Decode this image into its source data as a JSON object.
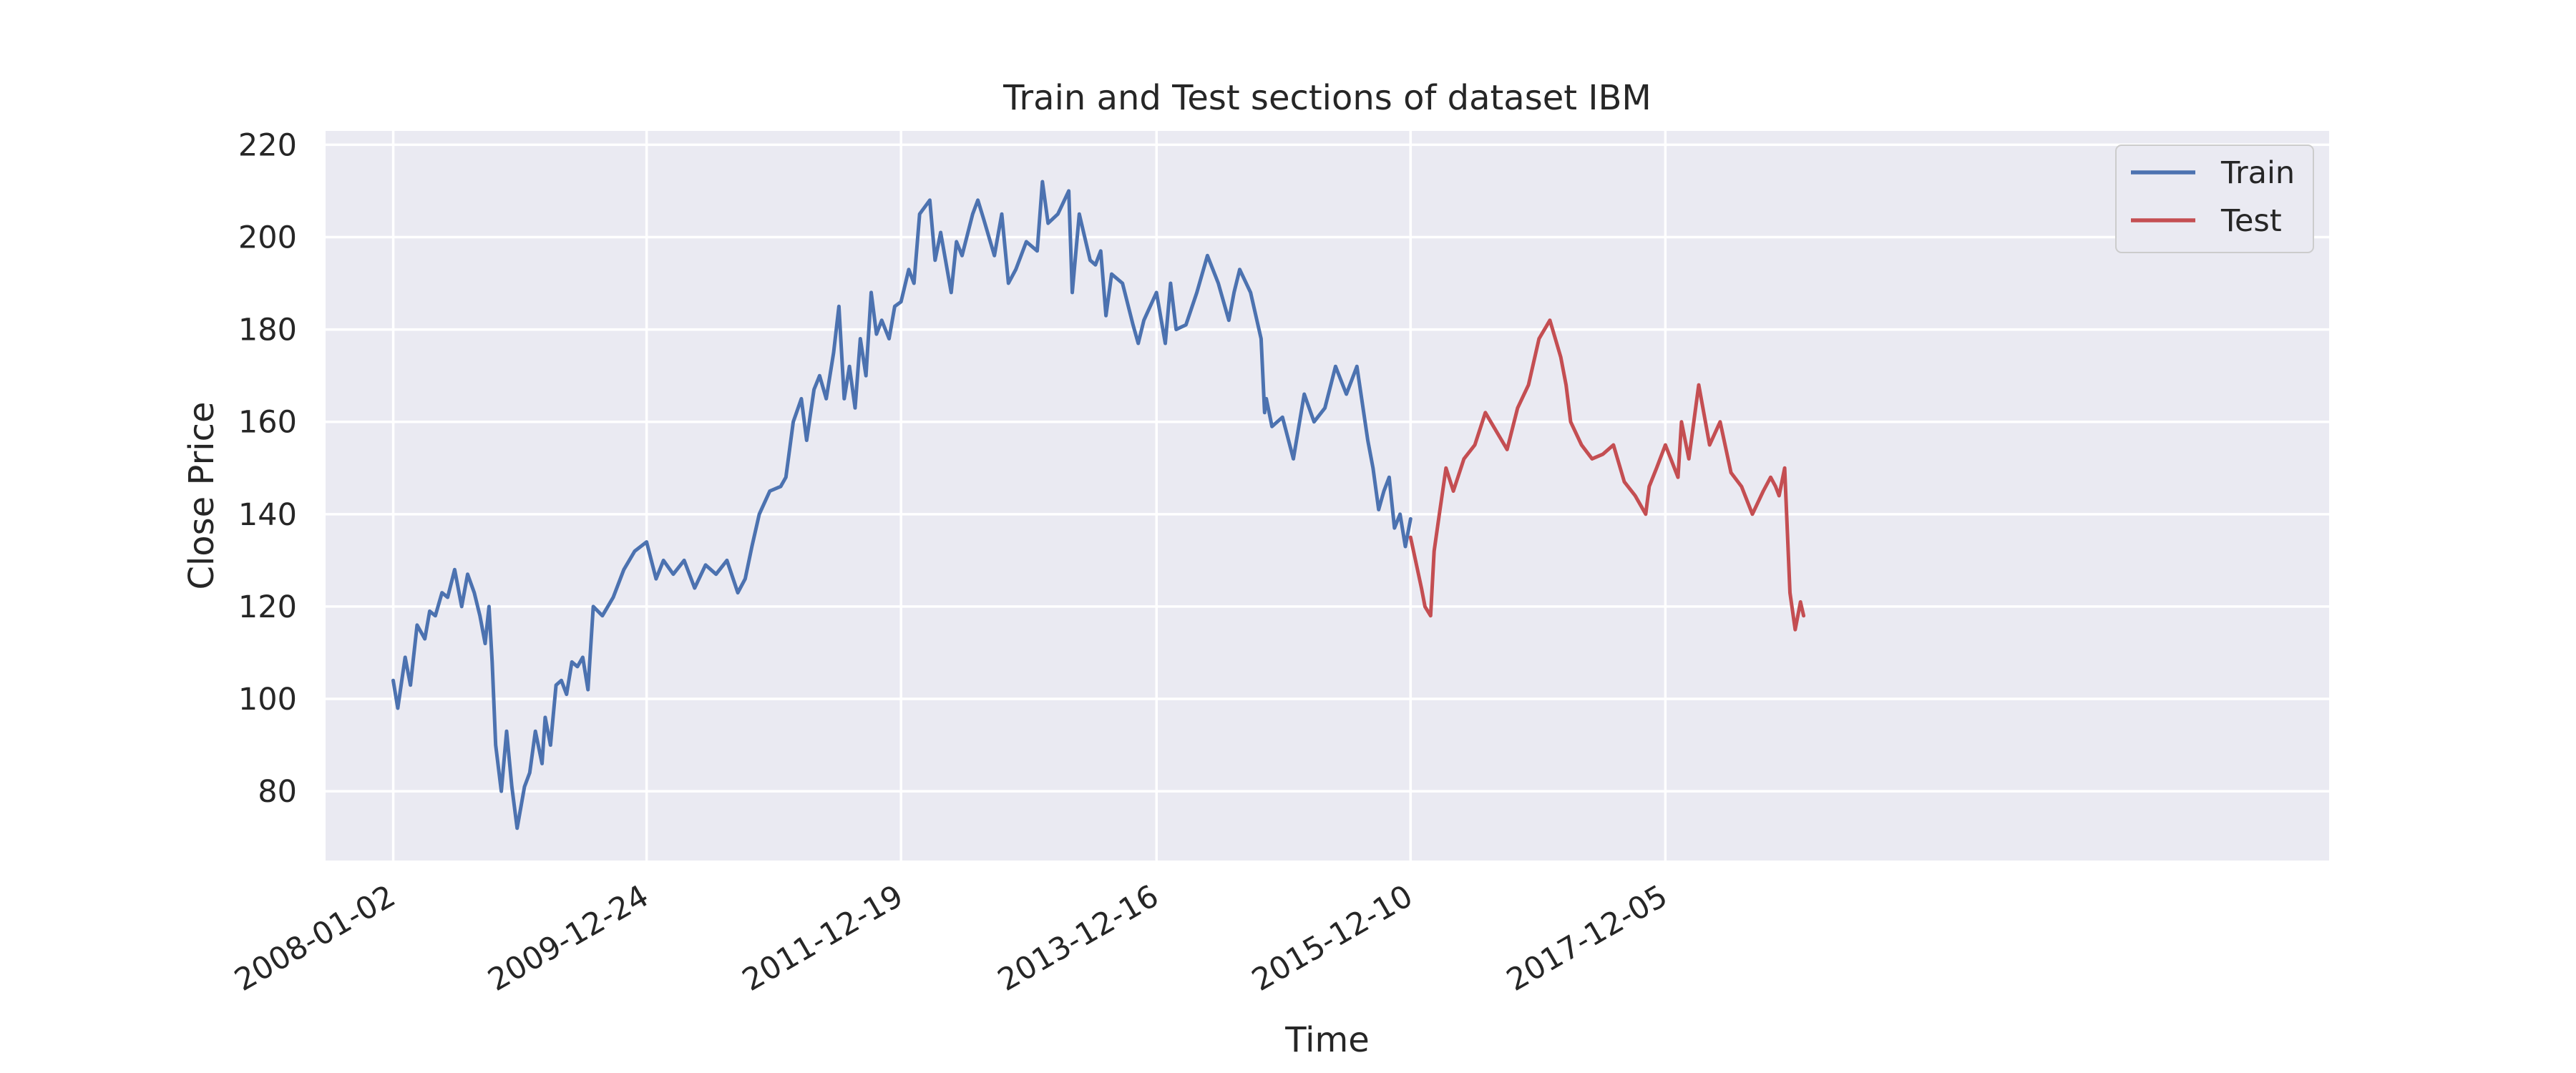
{
  "chart_data": {
    "type": "line",
    "title": "Train and Test sections of dataset IBM",
    "xlabel": "Time",
    "ylabel": "Close Price",
    "x_ticks": [
      "2008-01-02",
      "2009-12-24",
      "2011-12-19",
      "2013-12-16",
      "2015-12-10",
      "2017-12-05"
    ],
    "x_range_days": [
      -133,
      3806
    ],
    "xlim_note_unit": "trading-day index from 2008-01-02",
    "y_ticks": [
      80,
      100,
      120,
      140,
      160,
      180,
      200,
      220
    ],
    "ylim": [
      65,
      223
    ],
    "grid": true,
    "legend": {
      "position": "top-right"
    },
    "series": [
      {
        "name": "Train",
        "color": "#4c72b0",
        "x": [
          "2008-01-02",
          "2008-01-15",
          "2008-02-05",
          "2008-02-20",
          "2008-03-10",
          "2008-04-01",
          "2008-04-15",
          "2008-05-01",
          "2008-05-20",
          "2008-06-05",
          "2008-06-25",
          "2008-07-15",
          "2008-08-01",
          "2008-08-20",
          "2008-09-05",
          "2008-09-20",
          "2008-10-01",
          "2008-10-10",
          "2008-10-20",
          "2008-11-05",
          "2008-11-20",
          "2008-12-05",
          "2008-12-20",
          "2009-01-10",
          "2009-01-25",
          "2009-02-10",
          "2009-03-01",
          "2009-03-10",
          "2009-03-25",
          "2009-04-10",
          "2009-04-25",
          "2009-05-10",
          "2009-05-25",
          "2009-06-10",
          "2009-06-25",
          "2009-07-10",
          "2009-07-25",
          "2009-08-20",
          "2009-09-20",
          "2009-10-20",
          "2009-11-20",
          "2009-12-24",
          "2010-01-20",
          "2010-02-10",
          "2010-03-10",
          "2010-04-10",
          "2010-05-10",
          "2010-06-10",
          "2010-07-10",
          "2010-08-10",
          "2010-09-10",
          "2010-10-01",
          "2010-10-20",
          "2010-11-10",
          "2010-12-10",
          "2011-01-10",
          "2011-01-25",
          "2011-02-15",
          "2011-03-10",
          "2011-03-25",
          "2011-04-15",
          "2011-05-01",
          "2011-05-20",
          "2011-06-10",
          "2011-06-25",
          "2011-07-10",
          "2011-07-25",
          "2011-08-10",
          "2011-08-25",
          "2011-09-10",
          "2011-09-25",
          "2011-10-10",
          "2011-10-25",
          "2011-11-15",
          "2011-12-01",
          "2011-12-19",
          "2012-01-10",
          "2012-01-25",
          "2012-02-10",
          "2012-03-10",
          "2012-03-25",
          "2012-04-10",
          "2012-05-10",
          "2012-05-25",
          "2012-06-10",
          "2012-07-10",
          "2012-07-25",
          "2012-08-10",
          "2012-09-10",
          "2012-10-01",
          "2012-10-20",
          "2012-11-10",
          "2012-12-10",
          "2013-01-10",
          "2013-01-25",
          "2013-02-10",
          "2013-03-10",
          "2013-04-10",
          "2013-04-20",
          "2013-05-10",
          "2013-06-10",
          "2013-06-25",
          "2013-07-10",
          "2013-07-25",
          "2013-08-10",
          "2013-09-10",
          "2013-10-10",
          "2013-10-25",
          "2013-11-10",
          "2013-12-16",
          "2014-01-10",
          "2014-01-25",
          "2014-02-10",
          "2014-03-10",
          "2014-04-10",
          "2014-05-10",
          "2014-06-10",
          "2014-07-10",
          "2014-07-25",
          "2014-08-10",
          "2014-09-10",
          "2014-10-10",
          "2014-10-20",
          "2014-10-25",
          "2014-11-10",
          "2014-12-10",
          "2015-01-10",
          "2015-02-10",
          "2015-03-10",
          "2015-04-10",
          "2015-05-10",
          "2015-06-10",
          "2015-07-10",
          "2015-08-10",
          "2015-08-25",
          "2015-09-10",
          "2015-09-25",
          "2015-10-10",
          "2015-10-25",
          "2015-11-10",
          "2015-11-25",
          "2015-12-10"
        ],
        "values": [
          104,
          98,
          109,
          103,
          116,
          113,
          119,
          118,
          123,
          122,
          128,
          120,
          127,
          123,
          118,
          112,
          120,
          108,
          90,
          80,
          93,
          81,
          72,
          81,
          84,
          93,
          86,
          96,
          90,
          103,
          104,
          101,
          108,
          107,
          109,
          102,
          120,
          118,
          122,
          128,
          132,
          134,
          126,
          130,
          127,
          130,
          124,
          129,
          127,
          130,
          123,
          126,
          133,
          140,
          145,
          146,
          148,
          160,
          165,
          156,
          167,
          170,
          165,
          175,
          185,
          165,
          172,
          163,
          178,
          170,
          188,
          179,
          182,
          178,
          185,
          186,
          193,
          190,
          205,
          208,
          195,
          201,
          188,
          199,
          196,
          205,
          208,
          204,
          196,
          205,
          190,
          193,
          199,
          197,
          212,
          203,
          205,
          210,
          188,
          205,
          195,
          194,
          197,
          183,
          192,
          190,
          181,
          177,
          182,
          188,
          177,
          190,
          180,
          181,
          188,
          196,
          190,
          182,
          188,
          193,
          188,
          178,
          162,
          165,
          159,
          161,
          152,
          166,
          160,
          163,
          172,
          166,
          172,
          156,
          150,
          141,
          145,
          148,
          137,
          140,
          133,
          139
        ],
        "values_note": "sampled from the plotted line"
      },
      {
        "name": "Test",
        "color": "#c44e52",
        "x": [
          "2015-12-10",
          "2016-01-10",
          "2016-01-20",
          "2016-02-05",
          "2016-02-15",
          "2016-03-01",
          "2016-03-20",
          "2016-04-10",
          "2016-05-10",
          "2016-06-10",
          "2016-07-10",
          "2016-08-10",
          "2016-09-10",
          "2016-10-10",
          "2016-11-10",
          "2016-12-10",
          "2017-01-10",
          "2017-02-10",
          "2017-02-25",
          "2017-03-10",
          "2017-04-10",
          "2017-05-10",
          "2017-06-10",
          "2017-07-10",
          "2017-08-10",
          "2017-09-10",
          "2017-10-10",
          "2017-10-20",
          "2017-11-10",
          "2017-12-05",
          "2018-01-10",
          "2018-01-20",
          "2018-02-10",
          "2018-03-10",
          "2018-04-10",
          "2018-05-10",
          "2018-06-10",
          "2018-07-10",
          "2018-08-10",
          "2018-09-10",
          "2018-10-01",
          "2018-10-15",
          "2018-10-25",
          "2018-11-10",
          "2018-11-25",
          "2018-12-10",
          "2018-12-25",
          "2019-01-03"
        ],
        "values": [
          135,
          124,
          120,
          118,
          132,
          140,
          150,
          145,
          152,
          155,
          162,
          158,
          154,
          163,
          168,
          178,
          182,
          174,
          168,
          160,
          155,
          152,
          153,
          155,
          147,
          144,
          140,
          146,
          150,
          155,
          148,
          160,
          152,
          168,
          155,
          160,
          149,
          146,
          140,
          145,
          148,
          146,
          144,
          150,
          123,
          115,
          121,
          118
        ],
        "values_note": "sampled from the plotted line"
      }
    ]
  }
}
